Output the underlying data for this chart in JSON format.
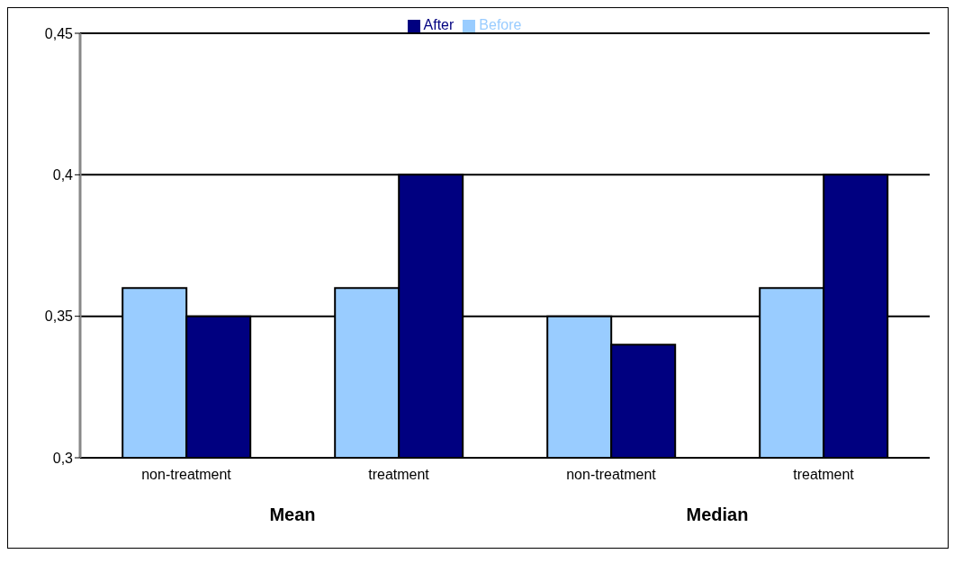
{
  "chart_data": {
    "type": "bar",
    "categories": [
      "non-treatment",
      "treatment",
      "non-treatment",
      "treatment"
    ],
    "series": [
      {
        "name": "Before",
        "color": "#99ccff",
        "values": [
          0.36,
          0.36,
          0.35,
          0.36
        ]
      },
      {
        "name": "After",
        "color": "#000080",
        "values": [
          0.35,
          0.4,
          0.34,
          0.4
        ]
      }
    ],
    "ylim": [
      0.3,
      0.45
    ],
    "yticks": [
      {
        "value": 0.3,
        "label": "0,3"
      },
      {
        "value": 0.35,
        "label": "0,35"
      },
      {
        "value": 0.4,
        "label": "0,4"
      },
      {
        "value": 0.45,
        "label": "0,45"
      }
    ],
    "grid": "y",
    "legend": "top",
    "annotations": [
      "Mean",
      "Median"
    ]
  }
}
